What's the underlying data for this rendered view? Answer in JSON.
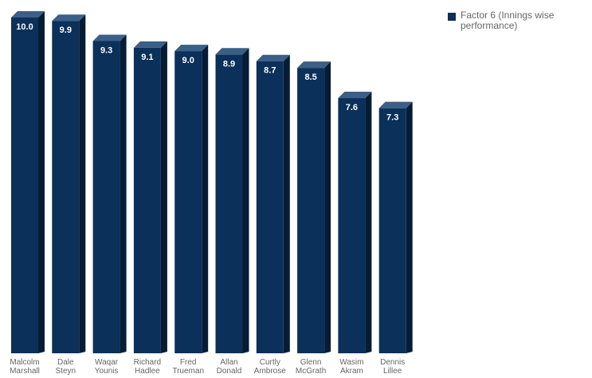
{
  "chart_data": {
    "type": "bar",
    "categories": [
      [
        "Malcolm",
        "Marshall"
      ],
      [
        "Dale",
        "Steyn"
      ],
      [
        "Waqar",
        "Younis"
      ],
      [
        "Richard",
        "Hadlee"
      ],
      [
        "Fred",
        "Trueman"
      ],
      [
        "Allan",
        "Donald"
      ],
      [
        "Curtly",
        "Ambrose"
      ],
      [
        "Glenn",
        "McGrath"
      ],
      [
        "Wasim",
        "Akram"
      ],
      [
        "Dennis",
        "Lillee"
      ]
    ],
    "series": [
      {
        "name": "Factor 6 (Innings wise performance)",
        "values": [
          10.0,
          9.9,
          9.3,
          9.1,
          9.0,
          8.9,
          8.7,
          8.5,
          7.6,
          7.3
        ],
        "value_labels": [
          "10.0",
          "9.9",
          "9.3",
          "9.1",
          "9.0",
          "8.9",
          "8.7",
          "8.5",
          "7.6",
          "7.3"
        ]
      }
    ],
    "ylim": [
      0,
      10
    ],
    "grid": false,
    "legend_position": "top-right",
    "colors": {
      "front": "#0b3059",
      "side": "#061c35",
      "top": "#3b5f86"
    }
  }
}
